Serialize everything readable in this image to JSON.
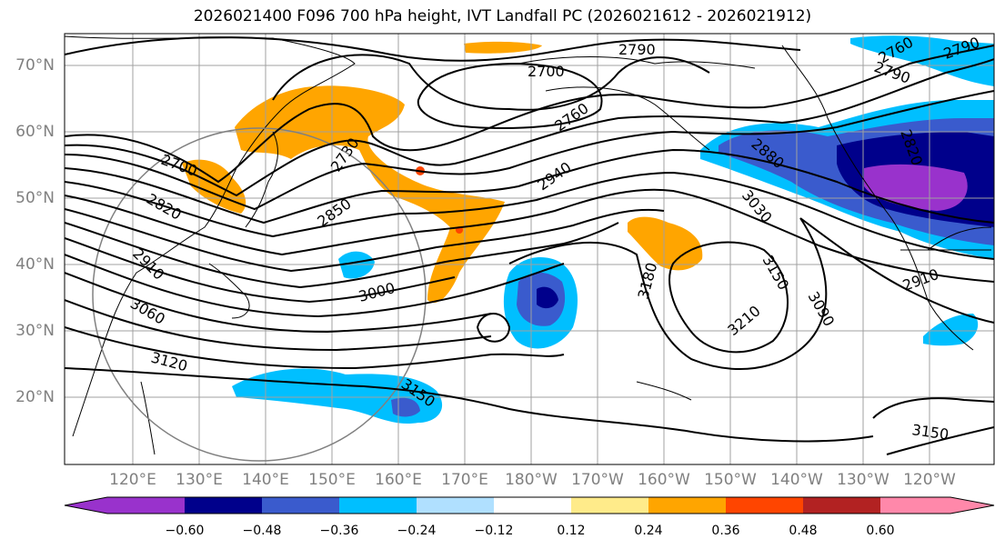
{
  "title": "2026021400 F096 700 hPa height, IVT Landfall PC (2026021612 - 2026021912)",
  "lat_labels": [
    "70°N",
    "60°N",
    "50°N",
    "40°N",
    "30°N",
    "20°N"
  ],
  "lon_labels": [
    "120°E",
    "130°E",
    "140°E",
    "150°E",
    "160°E",
    "170°E",
    "180°W",
    "170°W",
    "160°W",
    "150°W",
    "140°W",
    "130°W",
    "120°W"
  ],
  "contour_labels": [
    "2790",
    "2700",
    "2760",
    "2730",
    "2700",
    "2820",
    "2850",
    "2940",
    "2880",
    "3030",
    "2910",
    "3000",
    "3060",
    "3120",
    "3150",
    "3180",
    "3210",
    "3150",
    "3090",
    "2910",
    "3150",
    "2820",
    "2760",
    "2790",
    "2790"
  ],
  "colorbar": {
    "ticks": [
      "−0.60",
      "−0.48",
      "−0.36",
      "−0.24",
      "−0.12",
      "0.12",
      "0.24",
      "0.36",
      "0.48",
      "0.60"
    ],
    "colors": [
      "#9932cc",
      "#00008b",
      "#3a5bcd",
      "#00bfff",
      "#b0e0ff",
      "#ffffff",
      "#ffeb8a",
      "#ffa500",
      "#ff4500",
      "#b22222",
      "#ff88aa"
    ]
  }
}
